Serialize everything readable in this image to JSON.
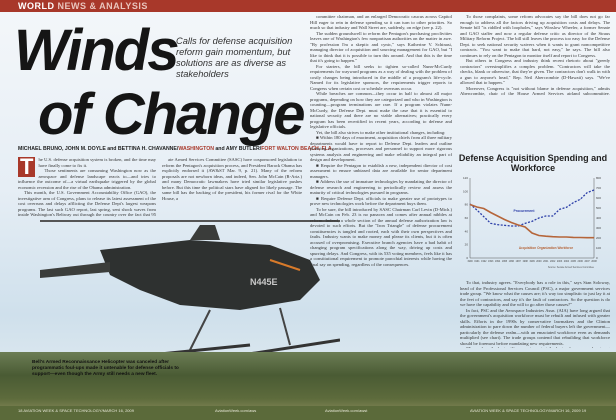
{
  "section": {
    "world": "WORLD",
    "news": "NEWS & ANALYSIS"
  },
  "headline": {
    "line1": "Winds",
    "line2": "of Change"
  },
  "subtitle": "Calls for defense acquisition reform gain momentum, but solutions are as diverse as stakeholders",
  "byline": {
    "authors": "MICHAEL BRUNO, JOHN M. DOYLE and BETTINA H. CHAVANNE/",
    "loc1": "WASHINGTON",
    "and": " and AMY BUTLER/",
    "loc2": "FORT WALTON BEACH, FLA."
  },
  "body": {
    "dropcap": "T",
    "col1": [
      "he U.S. defense acquisition system is broken, and the time may have finally come to fix it.",
      "Those sentiments are consuming Washington now as the aerospace and defense landscape reacts to—and tries to influence the outcome of—a virtual earthquake triggered by the global economic recession and the rise of the Obama administration.",
      "This month, the U.S. Government Accountability Office (GAO), the investigative arm of Congress, plans to release its latest assessment of the cost overruns and delays afflicting the Defense Dept's largest weapons programs. The last such GAO report, last spring, sent shock waves from inside Washington's Beltway out through the country over the fact that 95 of the Defense Dept's largest acquisition programs were, on average, two years behind schedule and have exceeded their original budgets by a combined total of $295 billion.",
      "Now, the chairman and senior Republican on the Sen-"
    ],
    "col2": [
      "ate Armed Services Committee (SASC) have cosponsored legislation to reform the Pentagon's acquisition process, and President Barack Obama has explicitly endorsed it (AW&ST Mar. 9, p. 21). Many of the reform proposals are not newborn ideas, and indeed, Sen. John McCain (R-Ariz.) and many Democratic lawmakers have tried similar legislative pushes before. But this time the political stars have aligned for likely passage. The same bill has the backing of the president, his former rival for the White House, a"
    ],
    "col3": [
      "committee chairman, and an enlarged Democratic caucus across Capitol Hill eager to rein in defense spending so it can turn to other priorities. So much so that industry and Wall Street are, suddenly, on edge (see p. 22).",
      "The sudden groundswell to reform the Pentagon's purchasing proclivities leaves one of Washington's few nonpartisan authorities on the matter in awe. \"By profession I'm a skeptic and cynic,\" says Katherine V. Schinasi, managing director of acquisition and sourcing management for GAO, but \"I like to think that it is possible to turn this around. And that this is the time that it's going to happen.\"",
      "For starters, the bill seeks to tighten so-called Nunn-McCurdy requirements for wayward programs as a way of dealing with the problem of costly changes being introduced in the middle of a program's life-cycle. Named for its legislative sponsors, the requirements trigger reports to Congress when certain cost or schedule overruns occur.",
      "While breaches are common—they occur in half to almost all major programs, depending on how they are categorized and who in Washington is counting—program terminations are rare. If a program violates Nunn-McCurdy, the Defense Dept. must make the case that it is essential to national security and there are no viable alternatives; practically every program has been recertified in recent years, according to defense and legislative officials.",
      "Yet, the bill also strives to make other institutional changes, including:",
      "■ Within 180 days of enactment, acquisition chiefs from all three military departments would have to report to Defense Dept. leaders and outline planning organizations, processes and personnel to support more rigorous systems analysis and engineering and make reliability an integral part of design and development.",
      "■ Require the Pentagon to establish a new, independent director of cost assessment to ensure unbiased data are available for senior department managers.",
      "■ Address the use of immature technologies by mandating the director of defense research and engineering to periodically review and assess the maturity of critical technologies pursued in programs.",
      "■ Require Defense Dept. officials to make greater use of prototypes to prove new technologies work before the department buys them.",
      "To be sure, the bill introduced by SASC Chairman Carl Levin (D-Mich.) and McCain on Feb. 23 is no panacea and comes after annual nibbles at reform. Indeed, a whole section of the annual defense authorization law is devoted to such efforts. But the \"Iron Triangle\" of defense procurement constituencies is tangled and rooted, each with their own perspectives and faults. Industry wants to make money and please its clients, but it is often accused of overpromising. Executive branch agencies have a bad habit of changing program specifications along the way, driving up costs and spurring delays. And Congress, with its 535 voting members, feels like it has a constitutional requirement to promote parochial interests while having the final say on spending, regardless of the consequences."
    ],
    "col4": [
      "To those complaints, some reform advocates say the bill does not go far enough to address all the factors driving up acquisition costs and delays. The Senate bill \"is riddled with loopholes,\" says Winslow Wheeler, a former Senate and GAO staffer and now a regular defense critic as director of the Straus Military Reform Project. The bill still leaves the process too easy for the Defense Dept. to seek national security waivers when it wants to grant noncompetitive contracts. \"You want to make that hard, not easy,\" he says. The bill also continues to rely on the Pentagon to monitor itself and report to Congress.",
      "But others in Congress and industry think recent rhetoric about \"greedy contractors\" oversimplifies a complex problem. \"Contractors will take the checks, blank or otherwise, that they're given. The contractors don't walk in with a gun to anyone's head,\" Rep. Neil Abercrombie (D-Hawaii) says. \"We've allowed that to happen.\"",
      "Moreover, Congress is \"not without blame in defense acquisition,\" admits Abercrombie, chair of the House Armed Services airland subcommittee. \"Congress has been too willing to go along with programs that are clearly broken or over cost. This year needs to be different.\""
    ],
    "col5": [
      "To that, industry agrees. \"Everybody has a role in this,\" says Stan Soloway, head of the Professional Services Council (PSC), a major government services trade group. \"We know what the causes are; it's way too simplistic to just lay it at the feet of contractors, and say it's the fault of contractors. So the question is do we have the capability and the will to go after those causes?\"",
      "In fact, PSC and the Aerospace Industries Assn. (AIA) have long argued that the government's acquisition workforce must be rebuilt and infused with greater skills. Efforts in the 1990s by conservative lawmakers and the Clinton administration to pare down the number of federal buyers left the government—particularly the defense realm—with an emaciated workforce even as demands multiplied (see chart). The trade groups contend that rebuilding that workforce should be foremost before mandating new requirements.",
      "\"To produce the best military equipment at the best value, we need a strong industrial base, an experienced acquisition"
    ]
  },
  "photo_caption": "Bell's Armed Reconnaissance Helicopter was canceled after programmatic foul-ups made it untenable for defense officials to support—even though the Army still needs a new fleet.",
  "aircraft_marking": "N445E",
  "footer": {
    "left": "18 AVIATION WEEK & SPACE TECHNOLOGY/MARCH 16, 2009",
    "center_left": "AviationWeek.com/aws",
    "center_right": "AviationWeek.com/awst",
    "right": "AVIATION WEEK & SPACE TECHNOLOGY/MARCH 16, 2009 19"
  },
  "colors": {
    "accent": "#a8382a",
    "procurement": "#2c3fa8",
    "workforce": "#b5653a"
  },
  "chart_data": {
    "type": "line",
    "title": "Defense Acquisition Spending and Workforce",
    "x": [
      1990,
      1991,
      1992,
      1993,
      1994,
      1995,
      1996,
      1997,
      1998,
      1999,
      2000,
      2001,
      2002,
      2003,
      2004,
      2005,
      2006,
      2007,
      2008
    ],
    "y_left": {
      "ylim": [
        0,
        120
      ],
      "ticks": [
        0,
        20,
        40,
        60,
        80,
        100,
        120
      ]
    },
    "y_right": {
      "ylim": [
        0,
        800
      ],
      "ticks": [
        0,
        100,
        200,
        300,
        400,
        500,
        600,
        700,
        800
      ]
    },
    "series": [
      {
        "name": "Procurement",
        "axis": "left",
        "style": "dashed",
        "values": [
          81,
          72,
          62,
          52,
          50,
          49,
          48,
          48,
          52,
          55,
          60,
          63,
          63,
          73,
          76,
          83,
          88,
          98,
          102
        ]
      },
      {
        "name": "Acquisition Organization Workforce",
        "axis": "right",
        "style": "solid",
        "values": [
          535,
          510,
          495,
          455,
          420,
          385,
          355,
          330,
          310,
          250,
          225,
          218,
          213,
          210,
          210,
          206,
          205,
          203,
          203
        ]
      }
    ],
    "grid": false,
    "source": "Source: Senate Armed Services Committee"
  }
}
